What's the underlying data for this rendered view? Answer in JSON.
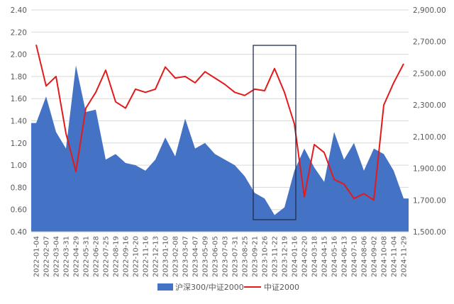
{
  "chart_data": {
    "type": "area",
    "categories": [
      "2022-01-04",
      "2022-02-07",
      "2022-03-04",
      "2022-03-31",
      "2022-04-29",
      "2022-05-31",
      "2022-06-28",
      "2022-07-25",
      "2022-08-19",
      "2022-09-16",
      "2022-10-20",
      "2022-11-16",
      "2022-12-13",
      "2023-01-10",
      "2023-02-08",
      "2023-03-07",
      "2023-04-07",
      "2023-05-09",
      "2023-06-05",
      "2023-07-03",
      "2023-07-31",
      "2023-08-25",
      "2023-09-21",
      "2023-10-26",
      "2023-11-22",
      "2023-12-19",
      "2024-01-16",
      "2024-02-20",
      "2024-03-18",
      "2024-04-15",
      "2024-05-16",
      "2024-06-13",
      "2024-07-10",
      "2024-08-06",
      "2024-09-02",
      "2024-10-08",
      "2024-11-04",
      "2024-11-29"
    ],
    "y_left": {
      "ylim": [
        0.4,
        2.4
      ],
      "ticks": [
        "0.40",
        "0.60",
        "0.80",
        "1.00",
        "1.20",
        "1.40",
        "1.60",
        "1.80",
        "2.00",
        "2.20",
        "2.40"
      ]
    },
    "y_right": {
      "ylim": [
        1500,
        2900
      ],
      "ticks": [
        "1,500.00",
        "1,700.00",
        "1,900.00",
        "2,100.00",
        "2,300.00",
        "2,500.00",
        "2,700.00",
        "2,900.00"
      ]
    },
    "grid": true,
    "legend_position": "bottom",
    "highlight_box_categories": [
      "2023-09-21",
      "2024-01-16"
    ],
    "series": [
      {
        "name": "沪深300/中证2000",
        "kind": "area",
        "axis": "left",
        "color": "#4472C4",
        "values": [
          1.38,
          1.62,
          1.3,
          1.15,
          1.9,
          1.48,
          1.5,
          1.05,
          1.1,
          1.02,
          1.0,
          0.95,
          1.05,
          1.25,
          1.08,
          1.42,
          1.15,
          1.2,
          1.1,
          1.05,
          1.0,
          0.9,
          0.75,
          0.7,
          0.55,
          0.62,
          0.95,
          1.15,
          0.98,
          0.85,
          1.3,
          1.05,
          1.2,
          0.95,
          1.15,
          1.1,
          0.95,
          0.7
        ]
      },
      {
        "name": "中证2000",
        "kind": "line",
        "axis": "right",
        "color": "#E31A1C",
        "values": [
          2680,
          2420,
          2480,
          2120,
          1880,
          2280,
          2380,
          2520,
          2320,
          2280,
          2400,
          2380,
          2400,
          2540,
          2470,
          2480,
          2440,
          2510,
          2470,
          2430,
          2380,
          2360,
          2400,
          2390,
          2530,
          2380,
          2180,
          1720,
          2050,
          2000,
          1830,
          1800,
          1710,
          1740,
          1700,
          2300,
          2440,
          2560
        ]
      }
    ]
  }
}
